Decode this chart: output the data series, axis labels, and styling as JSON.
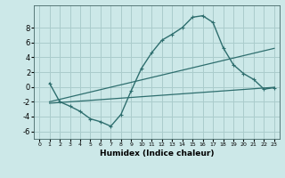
{
  "bg_color": "#cce8e8",
  "grid_color": "#aacccc",
  "line_color": "#2e6e6e",
  "xlabel": "Humidex (Indice chaleur)",
  "xlim": [
    -0.5,
    23.5
  ],
  "ylim": [
    -7.0,
    11.0
  ],
  "xticks": [
    0,
    1,
    2,
    3,
    4,
    5,
    6,
    7,
    8,
    9,
    10,
    11,
    12,
    13,
    14,
    15,
    16,
    17,
    18,
    19,
    20,
    21,
    22,
    23
  ],
  "yticks": [
    -6,
    -4,
    -2,
    0,
    2,
    4,
    6,
    8
  ],
  "line1_x": [
    1,
    2,
    3,
    4,
    5,
    6,
    7,
    8,
    9,
    10,
    11,
    12,
    13,
    14,
    15,
    16,
    17,
    18,
    19,
    20,
    21,
    22,
    23
  ],
  "line1_y": [
    0.5,
    -2.0,
    -2.6,
    -3.3,
    -4.3,
    -4.7,
    -5.3,
    -3.7,
    -0.5,
    2.5,
    4.6,
    6.3,
    7.1,
    8.0,
    9.4,
    9.6,
    8.7,
    5.3,
    3.0,
    1.8,
    1.0,
    -0.3,
    -0.1
  ],
  "line2_x": [
    1,
    23
  ],
  "line2_y": [
    -2.0,
    5.2
  ],
  "line3_x": [
    1,
    23
  ],
  "line3_y": [
    -2.2,
    -0.05
  ]
}
